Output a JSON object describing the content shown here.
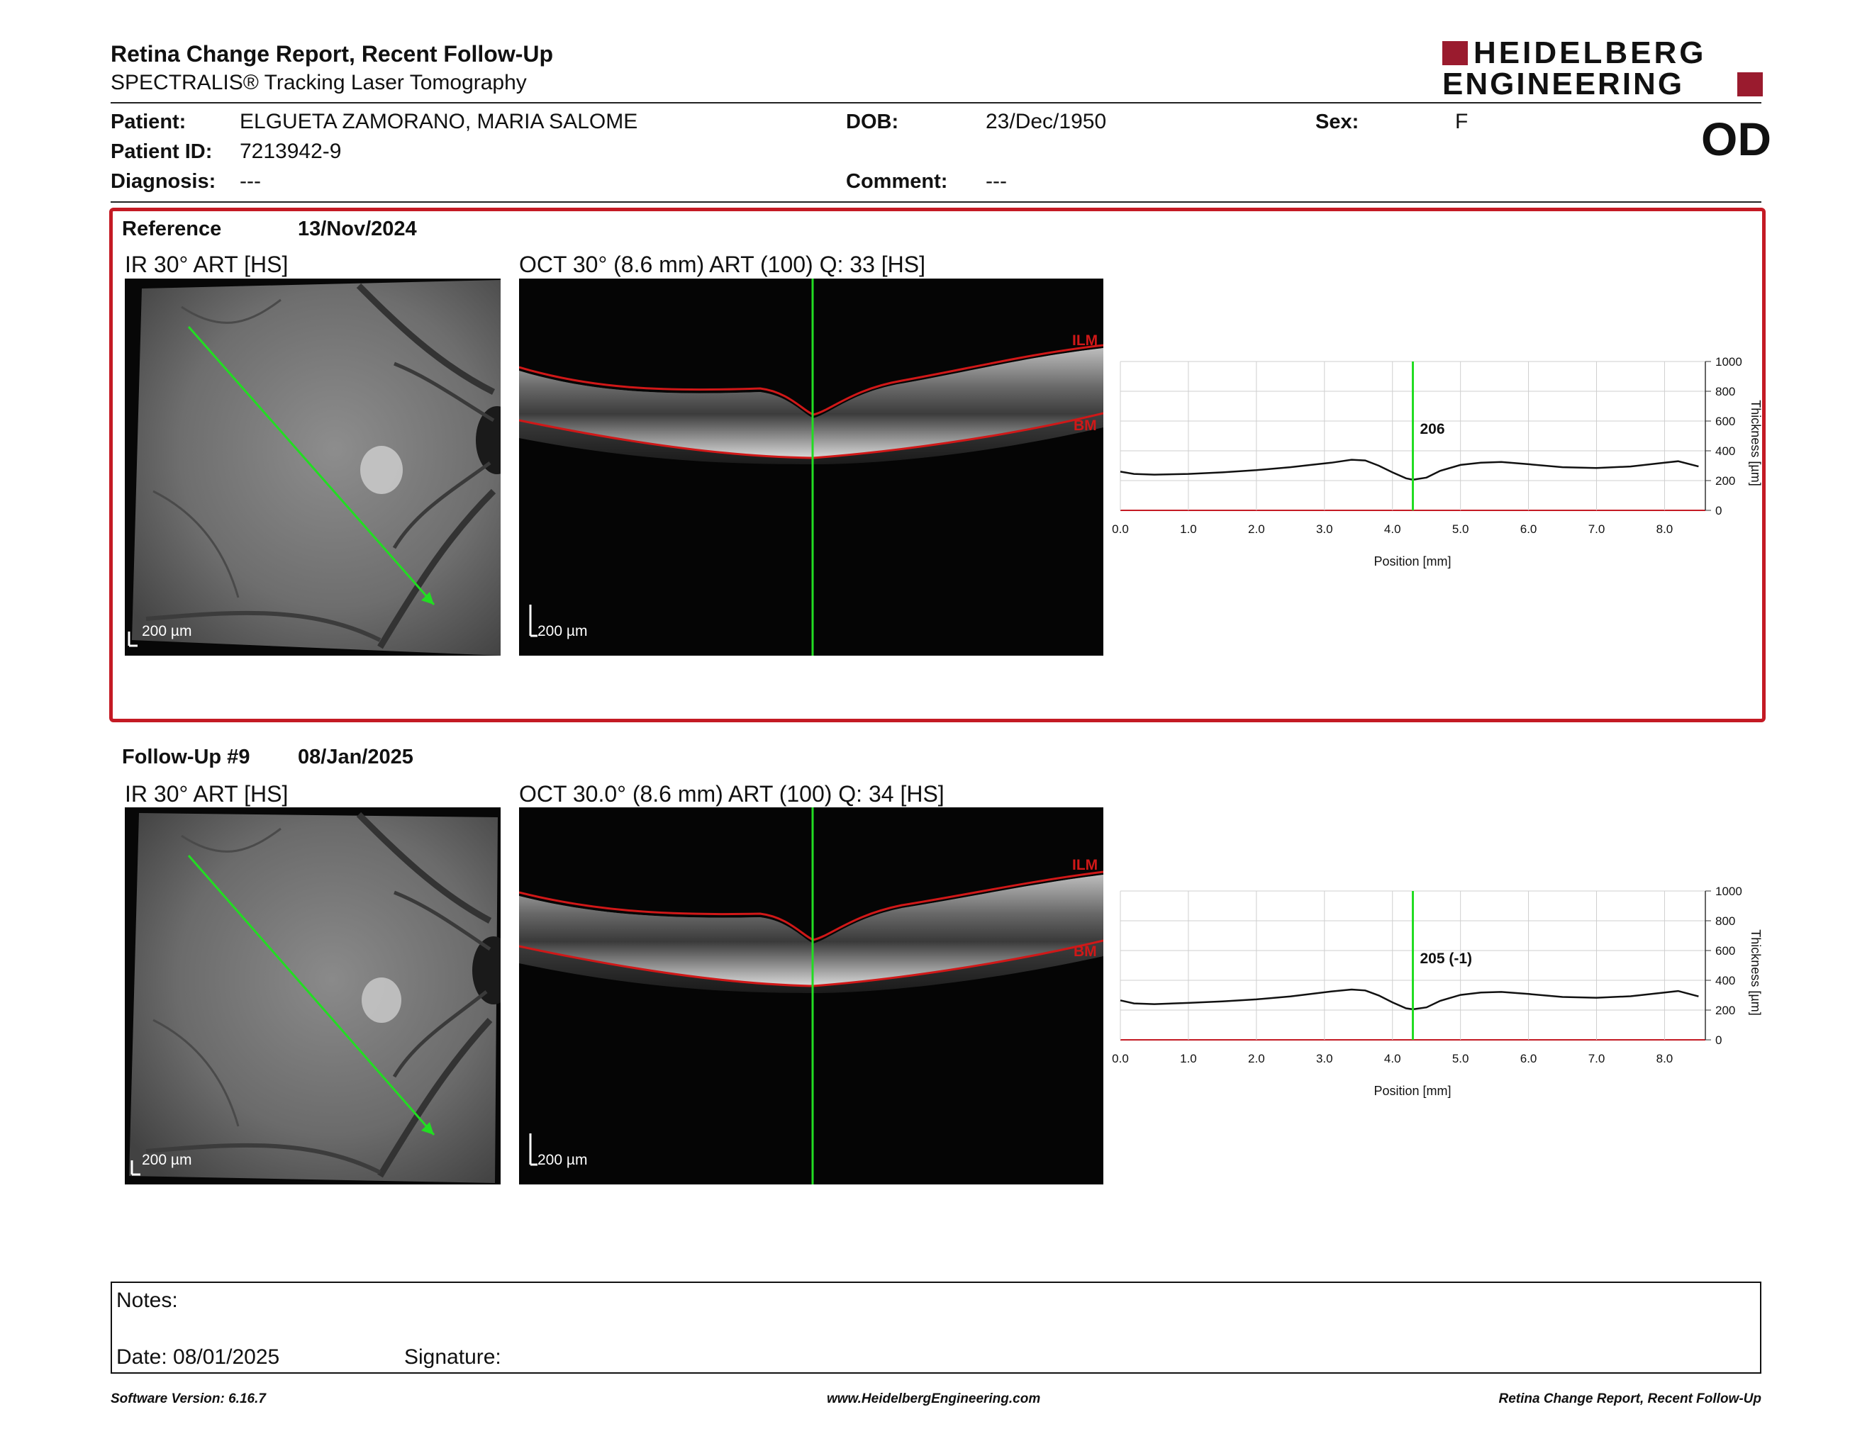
{
  "report": {
    "title": "Retina Change Report, Recent Follow-Up",
    "subtitle": "SPECTRALIS® Tracking Laser Tomography",
    "logo_line1": "HEIDELBERG",
    "logo_line2": "ENGINEERING",
    "eye": "OD"
  },
  "patient": {
    "name_label": "Patient:",
    "name": "ELGUETA ZAMORANO, MARIA SALOME",
    "id_label": "Patient ID:",
    "id": "7213942-9",
    "diagnosis_label": "Diagnosis:",
    "diagnosis": "---",
    "dob_label": "DOB:",
    "dob": "23/Dec/1950",
    "comment_label": "Comment:",
    "comment": "---",
    "sex_label": "Sex:",
    "sex": "F"
  },
  "reference": {
    "label": "Reference",
    "date": "13/Nov/2024",
    "ir_label": "IR 30° ART [HS]",
    "oct_label": "OCT 30° (8.6 mm) ART (100) Q: 33 [HS]",
    "ir_scale": "200 µm",
    "oct_scale": "200 µm",
    "ilm": "ILM",
    "bm": "BM"
  },
  "followup": {
    "label": "Follow-Up #9",
    "date": "08/Jan/2025",
    "ir_label": "IR 30° ART [HS]",
    "oct_label": "OCT 30.0° (8.6 mm) ART (100) Q: 34 [HS]",
    "ir_scale": "200 µm",
    "oct_scale": "200 µm",
    "ilm": "ILM",
    "bm": "BM"
  },
  "notes": {
    "notes_label": "Notes:",
    "date_label": "Date: 08/01/2025",
    "signature_label": "Signature:"
  },
  "footer": {
    "software": "Software Version: 6.16.7",
    "website": "www.HeidelbergEngineering.com",
    "report_name": "Retina Change Report, Recent Follow-Up"
  },
  "colors": {
    "brand": "#9a1b2e",
    "reference_border": "#c41a24",
    "scan_line": "#22dd22",
    "segmentation": "#d01818"
  },
  "chart_data": [
    {
      "type": "line",
      "section": "reference",
      "xlabel": "Position [mm]",
      "ylabel": "Thickness [µm]",
      "xlim": [
        0,
        8.6
      ],
      "ylim": [
        0,
        1000
      ],
      "x_ticks": [
        "0.0",
        "1.0",
        "2.0",
        "3.0",
        "4.0",
        "5.0",
        "6.0",
        "7.0",
        "8.0"
      ],
      "y_ticks": [
        "0",
        "200",
        "400",
        "600",
        "800",
        "1000"
      ],
      "grid": true,
      "cursor_x": 4.3,
      "cursor_label": "206",
      "series": [
        {
          "x": [
            0.0,
            0.2,
            0.5,
            1.0,
            1.5,
            2.0,
            2.5,
            2.8,
            3.1,
            3.4,
            3.6,
            3.8,
            4.0,
            4.2,
            4.3,
            4.5,
            4.7,
            5.0,
            5.3,
            5.6,
            6.0,
            6.5,
            7.0,
            7.5,
            8.0,
            8.2,
            8.5
          ],
          "y": [
            260,
            245,
            240,
            245,
            255,
            270,
            290,
            305,
            320,
            340,
            335,
            300,
            255,
            215,
            206,
            220,
            265,
            305,
            320,
            325,
            310,
            290,
            285,
            295,
            320,
            330,
            295
          ]
        }
      ]
    },
    {
      "type": "line",
      "section": "followup",
      "xlabel": "Position [mm]",
      "ylabel": "Thickness [µm]",
      "xlim": [
        0,
        8.6
      ],
      "ylim": [
        0,
        1000
      ],
      "x_ticks": [
        "0.0",
        "1.0",
        "2.0",
        "3.0",
        "4.0",
        "5.0",
        "6.0",
        "7.0",
        "8.0"
      ],
      "y_ticks": [
        "0",
        "200",
        "400",
        "600",
        "800",
        "1000"
      ],
      "grid": true,
      "cursor_x": 4.3,
      "cursor_label": "205 (-1)",
      "series": [
        {
          "x": [
            0.0,
            0.2,
            0.5,
            1.0,
            1.5,
            2.0,
            2.5,
            2.8,
            3.1,
            3.4,
            3.6,
            3.8,
            4.0,
            4.2,
            4.3,
            4.5,
            4.7,
            5.0,
            5.3,
            5.6,
            6.0,
            6.5,
            7.0,
            7.5,
            8.0,
            8.2,
            8.5
          ],
          "y": [
            265,
            245,
            240,
            248,
            258,
            272,
            292,
            308,
            325,
            338,
            332,
            298,
            252,
            212,
            205,
            218,
            262,
            302,
            318,
            322,
            308,
            288,
            283,
            293,
            318,
            328,
            292
          ]
        }
      ]
    }
  ]
}
